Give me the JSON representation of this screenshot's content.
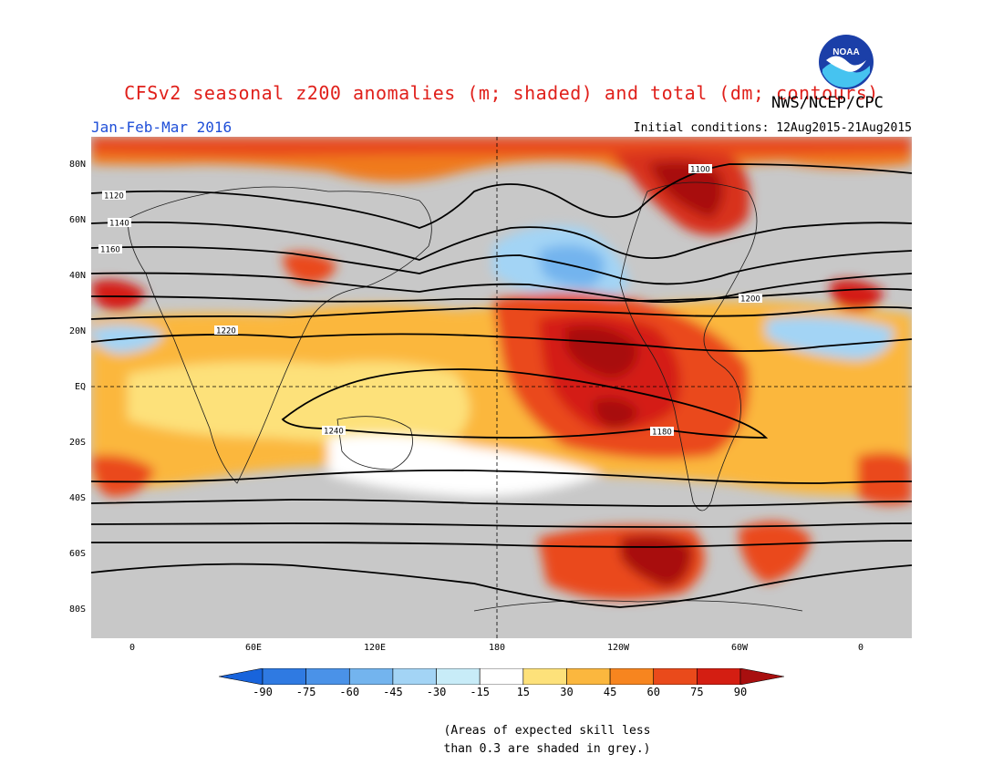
{
  "title": "CFSv2 seasonal z200 anomalies (m; shaded) and total (dm; contours)",
  "agency": "NWS/NCEP/CPC",
  "logo_text": "NOAA",
  "season": "Jan-Feb-Mar 2016",
  "initial_conditions": "Initial conditions: 12Aug2015-21Aug2015",
  "lat_labels": [
    "80N",
    "60N",
    "40N",
    "20N",
    "EQ",
    "20S",
    "40S",
    "60S",
    "80S"
  ],
  "lon_labels": [
    "0",
    "60E",
    "120E",
    "180",
    "120W",
    "60W",
    "0"
  ],
  "colorbar": {
    "labels": [
      "-90",
      "-75",
      "-60",
      "-45",
      "-30",
      "-15",
      "15",
      "30",
      "45",
      "60",
      "75",
      "90"
    ],
    "colors": [
      "#1864dc",
      "#2f7ae2",
      "#4a92e8",
      "#73b4ee",
      "#a3d4f5",
      "#c8ecf8",
      "#ffffff",
      "#fde17a",
      "#fbb73e",
      "#f7851f",
      "#ea4a1b",
      "#d41e12",
      "#a80f0f"
    ]
  },
  "skill_mask_color": "#c8c8c8",
  "contour_labels": [
    "1100",
    "1120",
    "1140",
    "1160",
    "1180",
    "1200",
    "1220",
    "1240"
  ],
  "note_line1": "(Areas of expected skill less",
  "note_line2": "than 0.3 are shaded in grey.)"
}
